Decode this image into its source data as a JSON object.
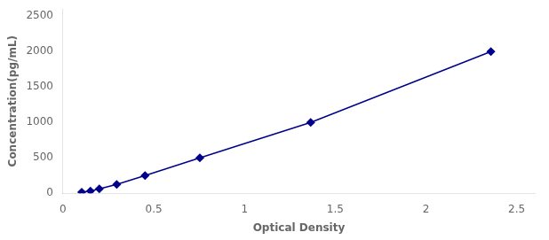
{
  "chart_data": {
    "type": "line",
    "x": [
      0.103,
      0.151,
      0.2,
      0.296,
      0.452,
      0.754,
      1.365,
      2.358
    ],
    "values": [
      15.6,
      31.25,
      62.5,
      125,
      250,
      500,
      1000,
      2000
    ],
    "color": "#00008B",
    "marker": "diamond",
    "line_style": "solid",
    "x_label": "Optical Density",
    "y_label": "Concentration(pg/mL)",
    "xlim": [
      0.0,
      2.6
    ],
    "ylim": [
      0,
      2600
    ],
    "xticks": [
      0,
      0.5,
      1.0,
      1.5,
      2.0,
      2.5
    ],
    "yticks": [
      0,
      500,
      1000,
      1500,
      2000,
      2500
    ],
    "grid": false
  }
}
